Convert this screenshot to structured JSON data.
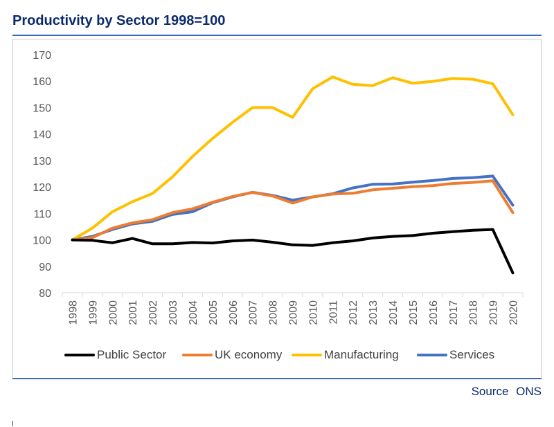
{
  "header": {
    "title": "Productivity by Sector 1998=100"
  },
  "footer": {
    "source": "Source ONS"
  },
  "chart_data": {
    "type": "line",
    "title": "Productivity by Sector 1998=100",
    "xlabel": "",
    "ylabel": "",
    "x": [
      "1998",
      "1999",
      "2000",
      "2001",
      "2002",
      "2003",
      "2004",
      "2005",
      "2006",
      "2007",
      "2008",
      "2009",
      "2010",
      "2011",
      "2012",
      "2013",
      "2014",
      "2015",
      "2016",
      "2017",
      "2018",
      "2019",
      "2020"
    ],
    "ylim": [
      80,
      170
    ],
    "yticks": [
      80,
      90,
      100,
      110,
      120,
      130,
      140,
      150,
      160,
      170
    ],
    "grid": false,
    "legend_position": "bottom",
    "series": [
      {
        "name": "Public Sector",
        "color": "#000000",
        "values": [
          100,
          99.8,
          98.9,
          100.5,
          98.5,
          98.5,
          99.0,
          98.8,
          99.6,
          99.9,
          99.1,
          98.1,
          97.9,
          98.9,
          99.6,
          100.7,
          101.3,
          101.6,
          102.5,
          103.1,
          103.6,
          103.9,
          87.5
        ]
      },
      {
        "name": "UK economy",
        "color": "#ed7d31",
        "values": [
          100,
          100.8,
          104.4,
          106.4,
          107.6,
          110.3,
          111.7,
          114.2,
          116.4,
          117.9,
          116.6,
          113.9,
          116.2,
          117.3,
          117.6,
          118.9,
          119.5,
          120.1,
          120.5,
          121.3,
          121.7,
          122.3,
          110.3
        ]
      },
      {
        "name": "Manufacturing",
        "color": "#ffc000",
        "values": [
          100,
          104.4,
          110.6,
          114.4,
          117.5,
          123.8,
          131.5,
          138.3,
          144.4,
          150.0,
          150.0,
          146.3,
          157.1,
          161.6,
          158.8,
          158.3,
          161.3,
          159.2,
          159.9,
          161.0,
          160.7,
          159.0,
          147.3
        ]
      },
      {
        "name": "Services",
        "color": "#4472c4",
        "values": [
          100,
          101.3,
          103.9,
          106.0,
          107.0,
          109.6,
          110.6,
          114.0,
          116.2,
          118.0,
          116.8,
          115.0,
          116.2,
          117.4,
          119.6,
          121.0,
          121.1,
          121.8,
          122.4,
          123.2,
          123.5,
          124.1,
          113.1
        ]
      }
    ]
  }
}
